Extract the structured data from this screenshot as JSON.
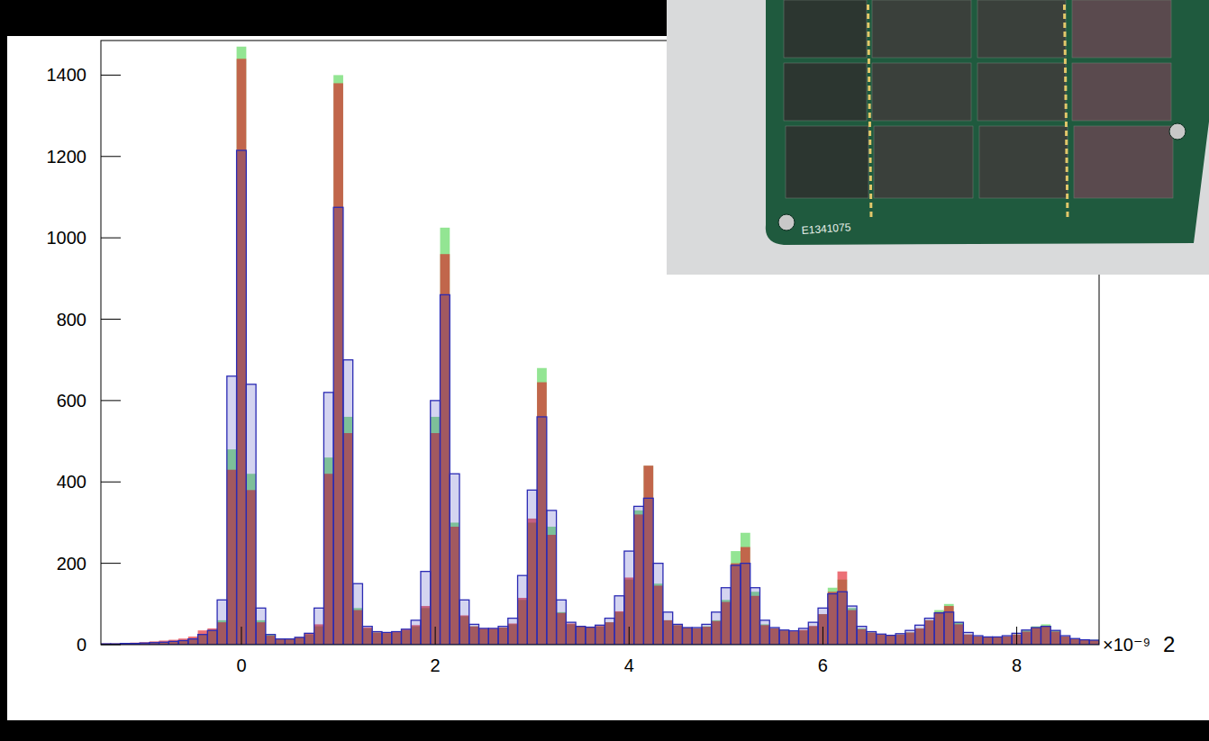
{
  "chart_data": {
    "type": "histogram",
    "x_label": "×10⁻⁹",
    "annotations": [
      "2",
      "E1341075"
    ],
    "bins": [
      -1.45,
      -1.35,
      -1.25,
      -1.15,
      -1.05,
      -0.95,
      -0.85,
      -0.75,
      -0.65,
      -0.55,
      -0.45,
      -0.35,
      -0.25,
      -0.15,
      -0.05,
      0.05,
      0.15,
      0.25,
      0.35,
      0.45,
      0.55,
      0.65,
      0.75,
      0.85,
      0.95,
      1.05,
      1.15,
      1.25,
      1.35,
      1.45,
      1.55,
      1.65,
      1.75,
      1.85,
      1.95,
      2.05,
      2.15,
      2.25,
      2.35,
      2.45,
      2.55,
      2.65,
      2.75,
      2.85,
      2.95,
      3.05,
      3.15,
      3.25,
      3.35,
      3.45,
      3.55,
      3.65,
      3.75,
      3.85,
      3.95,
      4.05,
      4.15,
      4.25,
      4.35,
      4.45,
      4.55,
      4.65,
      4.75,
      4.85,
      4.95,
      5.05,
      5.15,
      5.25,
      5.35,
      5.45,
      5.55,
      5.65,
      5.75,
      5.85,
      5.95,
      6.05,
      6.15,
      6.25,
      6.35,
      6.45,
      6.55,
      6.65,
      6.75,
      6.85,
      6.95,
      7.05,
      7.15,
      7.25,
      7.35,
      7.45,
      7.55,
      7.65,
      7.75,
      7.85,
      7.95,
      8.05,
      8.15,
      8.25,
      8.35,
      8.45,
      8.55,
      8.65,
      8.75,
      8.85
    ],
    "series": [
      {
        "color": "#6fdc6f",
        "values": [
          2,
          2,
          3,
          3,
          4,
          5,
          6,
          8,
          10,
          14,
          25,
          35,
          60,
          480,
          1470,
          420,
          60,
          25,
          15,
          15,
          18,
          25,
          45,
          460,
          1400,
          560,
          90,
          40,
          30,
          28,
          30,
          35,
          45,
          90,
          560,
          1025,
          300,
          70,
          45,
          38,
          38,
          42,
          50,
          110,
          300,
          680,
          290,
          80,
          50,
          45,
          42,
          45,
          55,
          80,
          160,
          330,
          440,
          150,
          60,
          48,
          42,
          40,
          45,
          60,
          110,
          230,
          275,
          130,
          50,
          40,
          35,
          32,
          35,
          45,
          75,
          140,
          160,
          90,
          40,
          30,
          25,
          22,
          25,
          30,
          40,
          60,
          85,
          100,
          55,
          25,
          20,
          18,
          18,
          20,
          25,
          35,
          45,
          50,
          35,
          20,
          15,
          12,
          12
        ]
      },
      {
        "color": "#e0101a",
        "values": [
          3,
          3,
          4,
          5,
          6,
          8,
          10,
          12,
          15,
          20,
          35,
          40,
          55,
          430,
          1440,
          380,
          55,
          22,
          14,
          14,
          18,
          28,
          50,
          420,
          1380,
          520,
          85,
          42,
          30,
          30,
          32,
          38,
          48,
          95,
          520,
          960,
          290,
          72,
          45,
          40,
          40,
          42,
          52,
          115,
          310,
          645,
          270,
          78,
          52,
          45,
          43,
          46,
          55,
          82,
          165,
          320,
          440,
          145,
          60,
          48,
          42,
          40,
          44,
          58,
          105,
          200,
          240,
          120,
          48,
          40,
          35,
          33,
          36,
          46,
          75,
          130,
          180,
          85,
          38,
          30,
          25,
          22,
          25,
          30,
          40,
          60,
          80,
          95,
          50,
          25,
          20,
          18,
          18,
          20,
          25,
          32,
          42,
          45,
          32,
          20,
          14,
          12,
          11
        ]
      },
      {
        "color": "#2a2ab4",
        "values": [
          2,
          2,
          3,
          3,
          4,
          5,
          6,
          8,
          10,
          14,
          25,
          35,
          110,
          660,
          1215,
          640,
          90,
          25,
          14,
          14,
          18,
          28,
          90,
          620,
          1075,
          700,
          150,
          45,
          32,
          30,
          32,
          38,
          60,
          180,
          600,
          860,
          420,
          110,
          50,
          40,
          40,
          45,
          65,
          170,
          380,
          560,
          330,
          110,
          55,
          45,
          43,
          48,
          65,
          120,
          230,
          340,
          360,
          200,
          80,
          50,
          42,
          42,
          50,
          80,
          140,
          195,
          200,
          140,
          60,
          42,
          36,
          34,
          40,
          55,
          90,
          125,
          130,
          95,
          45,
          32,
          26,
          23,
          27,
          35,
          48,
          65,
          78,
          80,
          55,
          30,
          22,
          19,
          19,
          22,
          28,
          36,
          42,
          45,
          35,
          22,
          15,
          12,
          11
        ]
      }
    ],
    "xlim": [
      -1.45,
      8.85
    ],
    "ylim": [
      0,
      1485
    ],
    "xticks": [
      0,
      2,
      4,
      6,
      8
    ],
    "yticks": [
      0,
      200,
      400,
      600,
      800,
      1000,
      1200,
      1400
    ],
    "grid": false
  }
}
